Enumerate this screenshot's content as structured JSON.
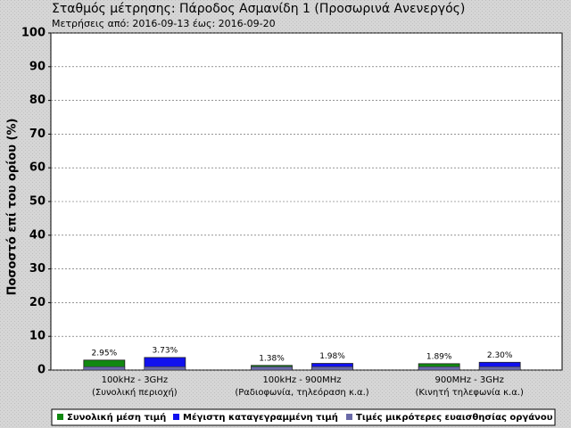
{
  "chart_data": {
    "type": "bar",
    "title": "Σταθμός μέτρησης: Πάροδος Ασμανίδη 1 (Προσωρινά Ανενεργός)",
    "subtitle": "Μετρήσεις από: 2016-09-13 έως: 2016-09-20",
    "y_label": "Ποσοστό επί του ορίου (%)",
    "categories": [
      "100kHz - 3GHz",
      "100kHz - 900MHz",
      "900MHz - 3GHz"
    ],
    "category_notes": [
      "(Συνολική περιοχή)",
      "(Ραδιοφωνία, τηλεόραση κ.α.)",
      "(Κινητή τηλεφωνία κ.α.)"
    ],
    "series": [
      {
        "name": "Συνολική μέση τιμή",
        "color": "#118811",
        "values": [
          2.95,
          1.38,
          1.89
        ],
        "value_labels": [
          "2.95%",
          "1.38%",
          "1.89%"
        ]
      },
      {
        "name": "Μέγιστη καταγεγραμμένη τιμή",
        "color": "#1111ee",
        "values": [
          3.73,
          1.98,
          2.3
        ],
        "value_labels": [
          "3.73%",
          "1.98%",
          "2.30%"
        ]
      },
      {
        "name": "Τιμές μικρότερες ευαισθησίας οργάνου",
        "color": "#6a6aa8",
        "values": [
          1,
          1,
          1
        ]
      }
    ],
    "ylim": [
      0,
      100
    ],
    "yticks": [
      0,
      10,
      20,
      30,
      40,
      50,
      60,
      70,
      80,
      90,
      100
    ],
    "grid": true,
    "legend": "bottom"
  }
}
